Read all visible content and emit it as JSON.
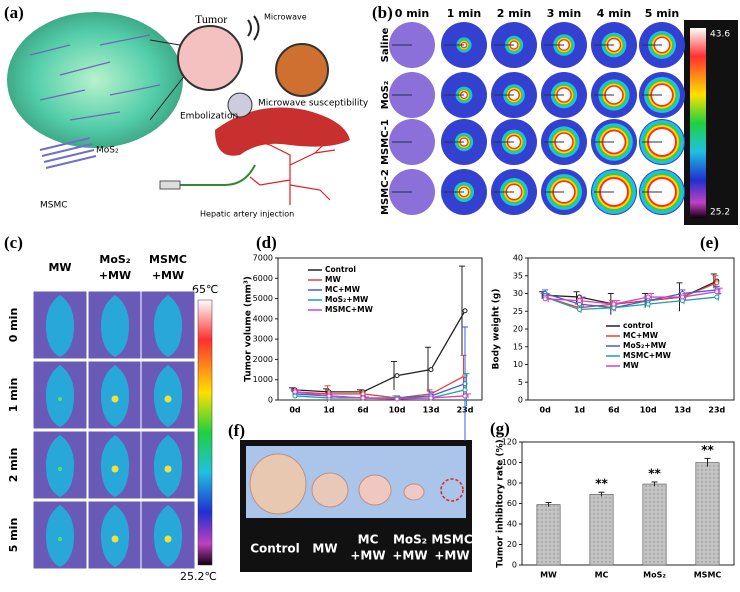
{
  "panels": {
    "a": {
      "label": "(a)",
      "tumor": "Tumor",
      "microwave": "Microwave",
      "susceptibility": "Microwave susceptibility",
      "embolization": "Embolization",
      "mos2": "MoS₂",
      "msmc": "MSMC",
      "injection": "Hepatic artery injection"
    },
    "b": {
      "label": "(b)",
      "columns": [
        "0 min",
        "1 min",
        "2 min",
        "3 min",
        "4 min",
        "5 min"
      ],
      "rows": [
        "Saline",
        "MoS₂",
        "MSMC-1",
        "MSMC-2"
      ],
      "scale_max": "43.6",
      "scale_min": "25.2"
    },
    "c": {
      "label": "(c)",
      "columns": [
        [
          "MW"
        ],
        [
          "MoS₂",
          "+MW"
        ],
        [
          "MSMC",
          "+MW"
        ]
      ],
      "rows": [
        "0 min",
        "1 min",
        "2 min",
        "5 min"
      ],
      "scale_max": "65℃",
      "scale_min": "25.2℃"
    },
    "f": {
      "label": "(f)",
      "labels": [
        [
          "Control"
        ],
        [
          "MW"
        ],
        [
          "MC",
          "+MW"
        ],
        [
          "MoS₂",
          "+MW"
        ],
        [
          "MSMC",
          "+MW"
        ]
      ]
    }
  },
  "chart_data": [
    {
      "type": "line",
      "panel_label": "(d)",
      "y_label": "Tumor volume (mm³)",
      "legend": "upper left",
      "categories": [
        "0d",
        "1d",
        "6d",
        "10d",
        "13d",
        "23d"
      ],
      "ylim": [
        0,
        7000
      ],
      "yticks": [
        0,
        1000,
        2000,
        3000,
        4000,
        5000,
        6000,
        7000
      ],
      "series": [
        {
          "name": "Control",
          "color": "#222222",
          "values": [
            500,
            400,
            400,
            1200,
            1500,
            4400
          ],
          "errors": [
            100,
            150,
            100,
            700,
            1100,
            2200
          ]
        },
        {
          "name": "MW",
          "color": "#e8403a",
          "values": [
            400,
            300,
            300,
            100,
            300,
            1200
          ],
          "errors": [
            100,
            400,
            100,
            100,
            200,
            1000
          ]
        },
        {
          "name": "MC+MW",
          "color": "#3a5fe0",
          "values": [
            300,
            200,
            100,
            100,
            200,
            800
          ],
          "errors": [
            100,
            100,
            100,
            100,
            200,
            2800
          ]
        },
        {
          "name": "MoS₂+MW",
          "color": "#1aa0a8",
          "values": [
            200,
            100,
            100,
            100,
            100,
            500
          ],
          "errors": [
            100,
            100,
            50,
            50,
            50,
            800
          ]
        },
        {
          "name": "MSMC+MW",
          "color": "#d640c8",
          "values": [
            400,
            200,
            100,
            50,
            100,
            200
          ],
          "errors": [
            100,
            100,
            50,
            50,
            50,
            100
          ]
        }
      ]
    },
    {
      "type": "line",
      "panel_label": "(e)",
      "y_label": "Body weight (g)",
      "legend": "lower center",
      "categories": [
        "0d",
        "1d",
        "6d",
        "10d",
        "13d",
        "23d"
      ],
      "ylim": [
        0,
        40
      ],
      "yticks": [
        0,
        5,
        10,
        15,
        20,
        25,
        30,
        35,
        40
      ],
      "series": [
        {
          "name": "control",
          "color": "#222222",
          "values": [
            29.5,
            29,
            27,
            28,
            29,
            33.5
          ],
          "errors": [
            1,
            1.5,
            3,
            2,
            4,
            2
          ]
        },
        {
          "name": "MC+MW",
          "color": "#e8403a",
          "values": [
            29,
            26,
            27,
            28,
            29,
            33
          ],
          "errors": [
            1,
            1,
            1,
            1,
            1,
            2
          ]
        },
        {
          "name": "MoS₂+MW",
          "color": "#3a5fe0",
          "values": [
            30,
            27,
            26,
            28,
            30,
            31
          ],
          "errors": [
            1,
            1,
            1,
            1,
            1,
            1
          ]
        },
        {
          "name": "MSMC+MW",
          "color": "#1aa0a8",
          "values": [
            29,
            25.5,
            26,
            27,
            28,
            29
          ],
          "errors": [
            1,
            1,
            1,
            1,
            1,
            1
          ]
        },
        {
          "name": "MW",
          "color": "#d640c8",
          "values": [
            28.5,
            28,
            27,
            29,
            29,
            30.5
          ],
          "errors": [
            1,
            1,
            1,
            1,
            1,
            1
          ]
        }
      ]
    },
    {
      "type": "bar",
      "panel_label": "(g)",
      "y_label": "Tumor inhibitory rate (%)",
      "color": "#bdbdbd",
      "categories": [
        "MW",
        "MC",
        "MoS₂",
        "MSMC"
      ],
      "values": [
        59,
        69,
        79,
        100
      ],
      "errors": [
        2,
        2,
        2,
        4
      ],
      "annotations": [
        null,
        "**",
        "**",
        "**"
      ],
      "ylim": [
        0,
        120
      ],
      "yticks": [
        0,
        20,
        40,
        60,
        80,
        100,
        120
      ]
    }
  ]
}
